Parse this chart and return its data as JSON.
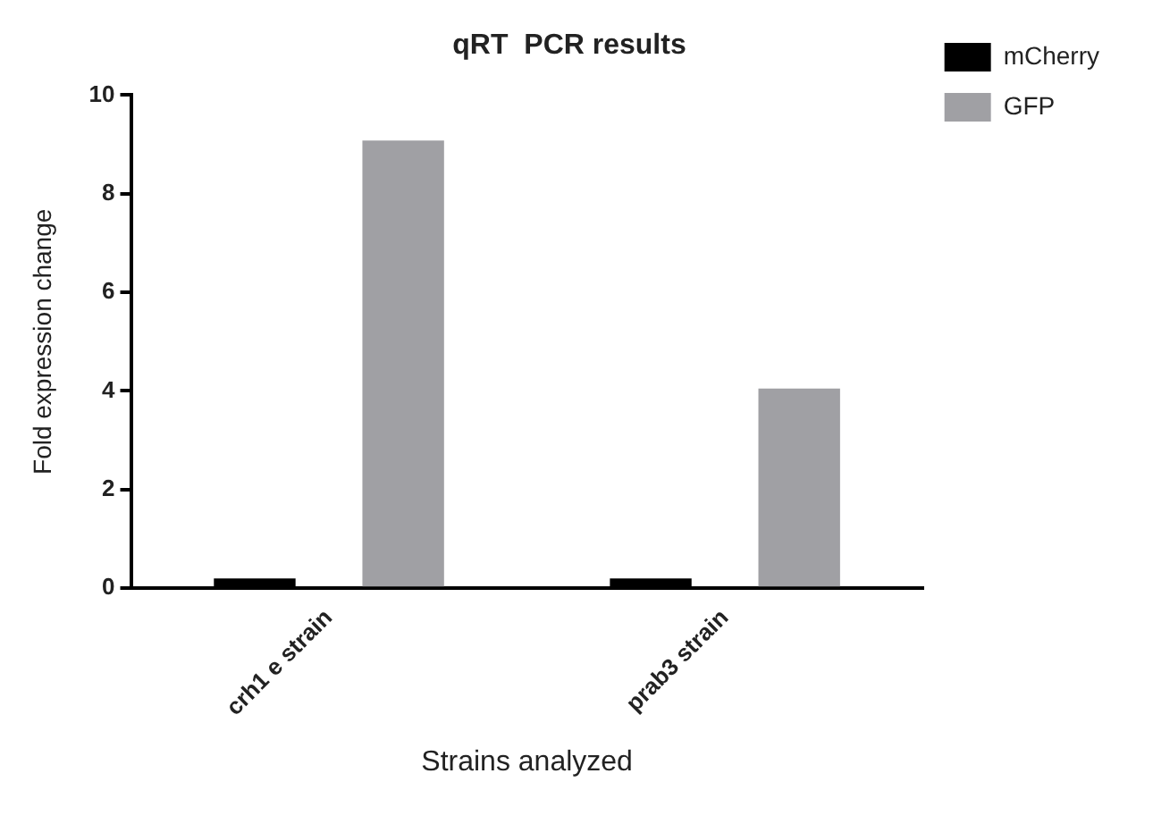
{
  "chart_data": {
    "type": "bar",
    "title": "qRT  PCR results",
    "xlabel": "Strains analyzed",
    "ylabel": "Fold expression change",
    "categories": [
      "crh1 e strain",
      "prab3 strain"
    ],
    "series": [
      {
        "name": "mCherry",
        "color": "#000000",
        "values": [
          0.2,
          0.2
        ]
      },
      {
        "name": "GFP",
        "color": "#a0a0a4",
        "values": [
          9.08,
          4.05
        ]
      }
    ],
    "ylim": [
      0,
      10
    ],
    "yticks": [
      0,
      2,
      4,
      6,
      8,
      10
    ],
    "grid": false,
    "legend": "top right"
  }
}
